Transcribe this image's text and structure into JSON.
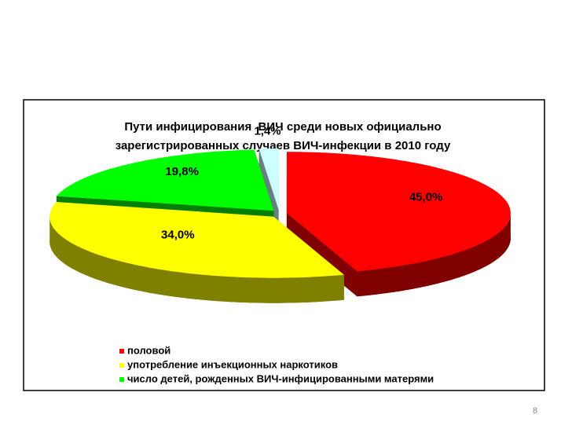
{
  "chart_data": {
    "type": "pie",
    "title": [
      "Пути инфицирования  ВИЧ среди новых официально",
      "зарегистрированных случаев ВИЧ-инфекции в 2010 году"
    ],
    "categories": [
      "половой",
      "употребление инъекционных наркотиков",
      "число детей, рожденных ВИЧ-инфицированными матерями",
      null
    ],
    "values": [
      45.0,
      34.0,
      19.8,
      1.4
    ],
    "value_labels": [
      "45,0%",
      "34,0%",
      "19,8%",
      "1,4%"
    ],
    "colors": [
      "#ff0000",
      "#ffff00",
      "#00ff00",
      "#ccffff"
    ],
    "legend": "bottom-left"
  },
  "slide": {
    "number": 8
  }
}
